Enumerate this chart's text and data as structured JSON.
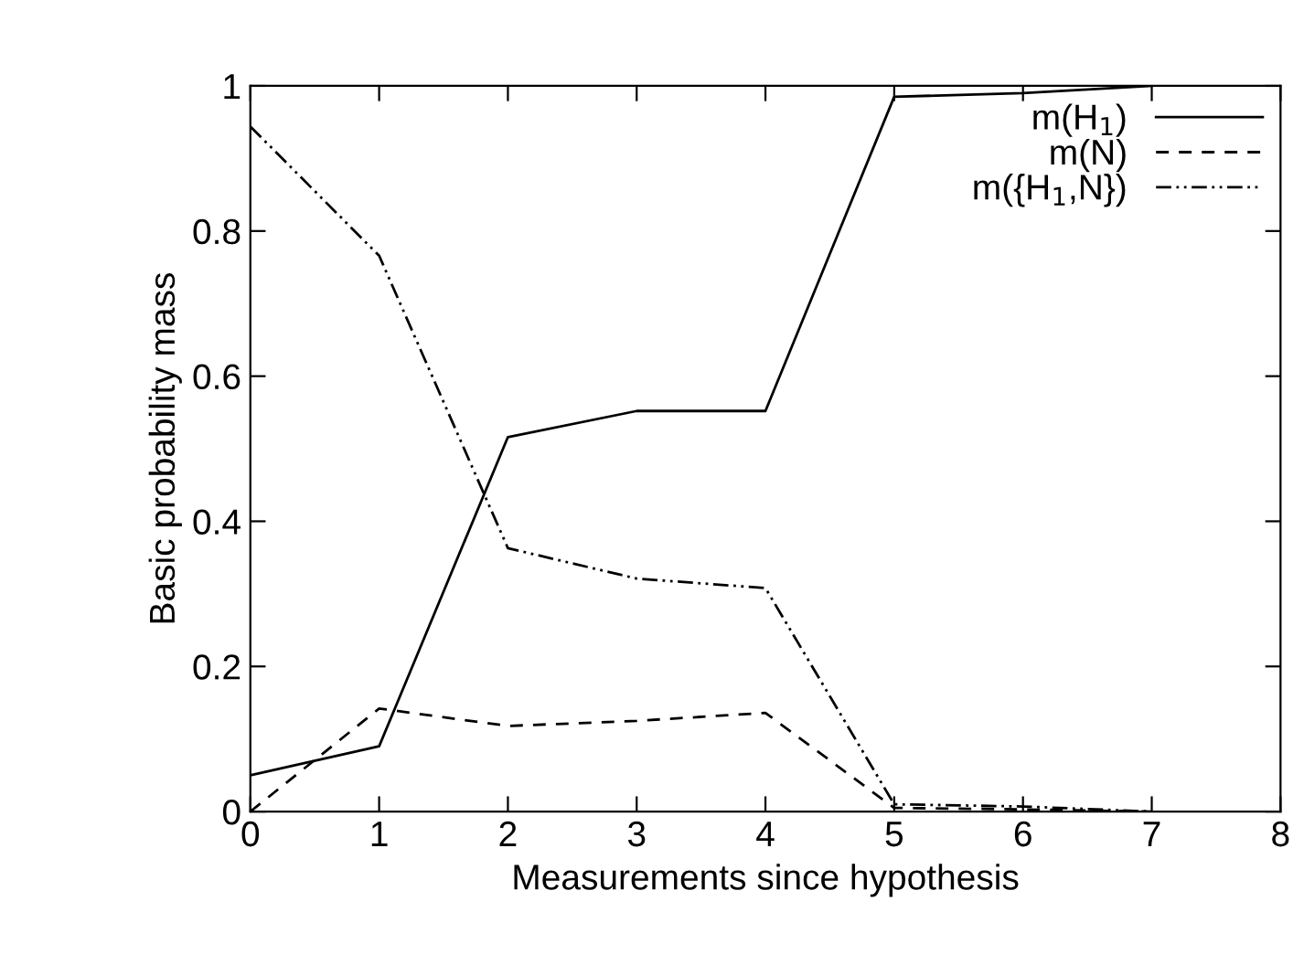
{
  "chart_data": {
    "type": "line",
    "xlabel": "Measurements since hypothesis",
    "ylabel": "Basic probability mass",
    "x": [
      0,
      1,
      2,
      3,
      4,
      5,
      6,
      7
    ],
    "series": [
      {
        "name": "m(H$_{1}$)",
        "color": "#000000",
        "line_style": "solid",
        "values": [
          0.05,
          0.09,
          0.516,
          0.552,
          0.552,
          0.985,
          0.99,
          1.0
        ]
      },
      {
        "name": "m(N)",
        "color": "#000000",
        "line_style": "dashed",
        "values": [
          0,
          0.142,
          0.118,
          0.125,
          0.136,
          0.005,
          0.003,
          0
        ]
      },
      {
        "name": "m({H$_{1}$,N})",
        "color": "#000000",
        "line_style": "dashdotdot",
        "values": [
          0.944,
          0.766,
          0.363,
          0.321,
          0.308,
          0.01,
          0.007,
          0
        ]
      }
    ],
    "xlim": [
      0,
      8
    ],
    "xticks": [
      0,
      1,
      2,
      3,
      4,
      5,
      6,
      7,
      8
    ],
    "ylim": [
      0,
      1
    ],
    "yticks": [
      0,
      0.2,
      0.4,
      0.6,
      0.8,
      1
    ],
    "grid": false,
    "legend": "top right",
    "marker": "none"
  }
}
